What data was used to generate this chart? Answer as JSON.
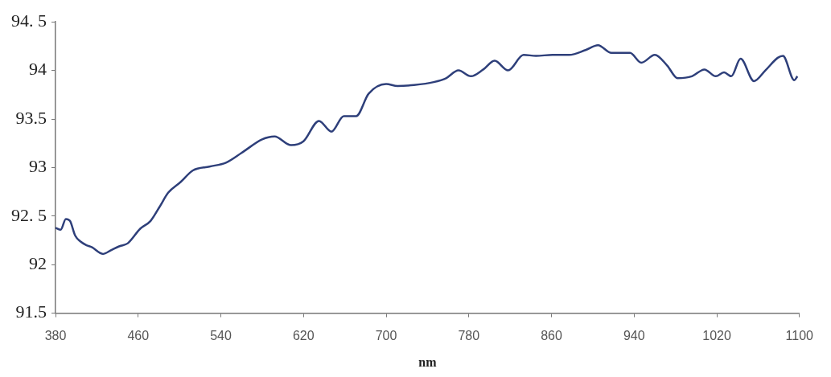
{
  "chart_data": {
    "type": "line",
    "xlabel": "nm",
    "color": "#2e3f7a",
    "marker": "none",
    "grid": false,
    "legend": false,
    "x": [
      380,
      385,
      390,
      394,
      399,
      404,
      410,
      415,
      426,
      434,
      442,
      450,
      462,
      472,
      481,
      489,
      501,
      513,
      529,
      545,
      560,
      580,
      592,
      608,
      620,
      635,
      647,
      659,
      671,
      683,
      700,
      711,
      727,
      746,
      758,
      770,
      782,
      794,
      805,
      818,
      833,
      845,
      861,
      877,
      893,
      905,
      918,
      936,
      947,
      960,
      972,
      982,
      996,
      1008,
      1019,
      1027,
      1034,
      1043,
      1056,
      1067,
      1079,
      1084,
      1095,
      1098
    ],
    "values": [
      92.38,
      92.36,
      92.47,
      92.45,
      92.3,
      92.24,
      92.2,
      92.18,
      92.11,
      92.15,
      92.19,
      92.22,
      92.37,
      92.45,
      92.6,
      92.74,
      92.85,
      92.97,
      93.01,
      93.05,
      93.15,
      93.29,
      93.32,
      93.23,
      93.27,
      93.48,
      93.37,
      93.53,
      93.53,
      93.76,
      93.86,
      93.84,
      93.85,
      93.88,
      93.92,
      94.0,
      93.94,
      94.01,
      94.1,
      94.0,
      94.16,
      94.15,
      94.16,
      94.16,
      94.21,
      94.26,
      94.18,
      94.18,
      94.08,
      94.16,
      94.05,
      93.92,
      93.94,
      94.01,
      93.94,
      93.98,
      93.94,
      94.12,
      93.89,
      94.0,
      94.13,
      94.15,
      93.9,
      93.94
    ],
    "xlim": [
      380,
      1100
    ],
    "xticks": [
      380,
      460,
      540,
      620,
      700,
      780,
      860,
      940,
      1020,
      1100
    ],
    "ylim": [
      91.5,
      94.5
    ],
    "yticks": [
      91.5,
      92,
      {
        "value": 92.5,
        "label": "92. 5"
      },
      93,
      93.5,
      94,
      {
        "value": 94.5,
        "label": "94. 5"
      }
    ]
  }
}
